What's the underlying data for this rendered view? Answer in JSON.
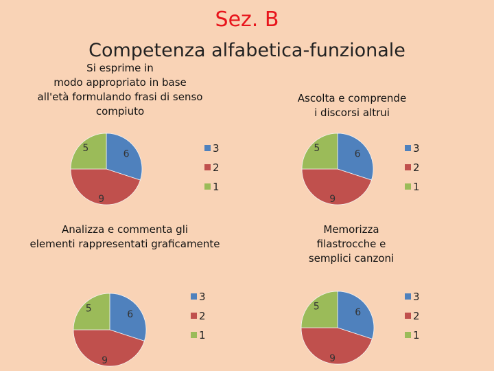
{
  "slide": {
    "title": "Sez. B",
    "subtitle": "Competenza alfabetica-funzionale"
  },
  "colors": {
    "series_3": "#4f81bd",
    "series_2": "#c0504d",
    "series_1": "#9bbb59",
    "background": "#f9d3b6",
    "title": "#e8141b"
  },
  "chart_data": [
    {
      "type": "pie",
      "title": "Si esprime in modo appropriato in base all'età formulando frasi di senso compiuto",
      "categories": [
        "3",
        "2",
        "1"
      ],
      "values": [
        6,
        9,
        5
      ],
      "legend": "right"
    },
    {
      "type": "pie",
      "title": "Ascolta e comprende i discorsi altrui",
      "categories": [
        "3",
        "2",
        "1"
      ],
      "values": [
        6,
        9,
        5
      ],
      "legend": "right"
    },
    {
      "type": "pie",
      "title": "Analizza e commenta gli elementi rappresentati graficamente",
      "categories": [
        "3",
        "2",
        "1"
      ],
      "values": [
        6,
        9,
        5
      ],
      "legend": "right"
    },
    {
      "type": "pie",
      "title": "Memorizza filastrocche e semplici canzoni",
      "categories": [
        "3",
        "2",
        "1"
      ],
      "values": [
        6,
        9,
        5
      ],
      "legend": "right"
    }
  ]
}
